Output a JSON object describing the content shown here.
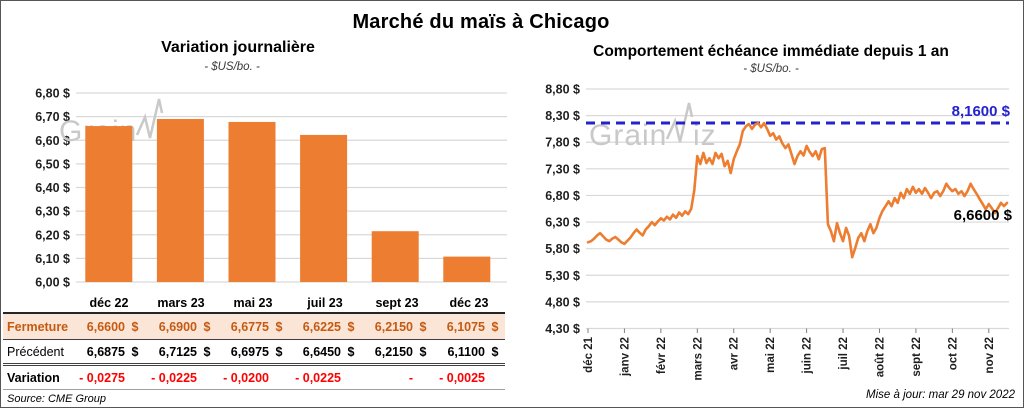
{
  "title": "Marché du maïs à Chicago",
  "colors": {
    "bar_orange": "#ED7D31",
    "line_orange": "#ED7D31",
    "ref_blue": "#2323CD",
    "grid": "#D9D9D9",
    "fermeture_bg": "#FBE5D6",
    "fermeture_text": "#C55A11",
    "variation_red": "#FF0000",
    "watermark_gray": "#c9c9c9"
  },
  "watermark": {
    "prefix": "Grain",
    "suffix": "iz"
  },
  "chart_data": [
    {
      "type": "bar",
      "title": "Variation journalière",
      "subtitle": "- $US/bo. -",
      "categories": [
        "déc 22",
        "mars 23",
        "mai 23",
        "juil 23",
        "sept 23",
        "déc 23"
      ],
      "values": [
        6.66,
        6.69,
        6.6775,
        6.6225,
        6.215,
        6.1075
      ],
      "ylim": [
        6.0,
        6.8
      ],
      "ytick_step": 0.1,
      "ytick_labels": [
        "6,00 $",
        "6,10 $",
        "6,20 $",
        "6,30 $",
        "6,40 $",
        "6,50 $",
        "6,60 $",
        "6,70 $",
        "6,80 $"
      ],
      "grid": true,
      "legend": "none"
    },
    {
      "type": "line",
      "title": "Comportement échéance immédiate depuis 1 an",
      "subtitle": "- $US/bo. -",
      "x_tick_labels": [
        "déc 21",
        "janv 22",
        "févr 22",
        "mars 22",
        "avr 22",
        "mai 22",
        "juin 22",
        "juil 22",
        "août 22",
        "sept 22",
        "oct 22",
        "nov 22"
      ],
      "points_per_month": 12,
      "values": [
        5.92,
        5.94,
        5.99,
        6.05,
        6.09,
        6.03,
        5.97,
        5.94,
        5.99,
        6.02,
        5.97,
        5.92,
        5.89,
        5.95,
        6.01,
        6.09,
        6.16,
        6.1,
        6.05,
        6.16,
        6.22,
        6.3,
        6.24,
        6.31,
        6.37,
        6.33,
        6.4,
        6.35,
        6.44,
        6.38,
        6.48,
        6.42,
        6.5,
        6.45,
        6.55,
        6.9,
        7.54,
        7.39,
        7.6,
        7.41,
        7.5,
        7.39,
        7.6,
        7.5,
        7.58,
        7.35,
        7.45,
        7.22,
        7.48,
        7.63,
        7.76,
        8.01,
        8.1,
        8.14,
        8.05,
        8.13,
        8.16,
        8.08,
        8.16,
        8.05,
        7.92,
        7.97,
        7.85,
        7.91,
        7.78,
        7.69,
        7.76,
        7.58,
        7.39,
        7.54,
        7.63,
        7.55,
        7.73,
        7.62,
        7.54,
        7.63,
        7.48,
        7.67,
        7.69,
        6.26,
        6.13,
        5.94,
        6.28,
        6.09,
        5.94,
        6.19,
        6.04,
        5.64,
        5.81,
        6.0,
        6.09,
        5.94,
        6.13,
        6.26,
        6.09,
        6.19,
        6.38,
        6.51,
        6.6,
        6.69,
        6.6,
        6.75,
        6.66,
        6.85,
        6.75,
        6.92,
        6.83,
        6.96,
        6.85,
        6.92,
        6.83,
        6.94,
        6.85,
        6.75,
        6.85,
        6.88,
        6.79,
        6.88,
        7.02,
        6.94,
        6.88,
        6.92,
        6.83,
        6.88,
        6.79,
        6.88,
        7.02,
        6.92,
        6.83,
        6.73,
        6.64,
        6.54,
        6.64,
        6.56,
        6.47,
        6.56,
        6.66,
        6.6,
        6.66
      ],
      "ylim": [
        4.3,
        8.8
      ],
      "ytick_step": 0.5,
      "ytick_labels": [
        "4,30 $",
        "4,80 $",
        "5,30 $",
        "5,80 $",
        "6,30 $",
        "6,80 $",
        "7,30 $",
        "7,80 $",
        "8,30 $",
        "8,80 $"
      ],
      "ref_line": {
        "value": 8.16,
        "label": "8,1600 $",
        "style": "dashed"
      },
      "end_label": {
        "value": 6.66,
        "label": "6,6600 $"
      },
      "grid": true,
      "legend": "none"
    }
  ],
  "table": {
    "columns": [
      "",
      "déc 22",
      "mars 23",
      "mai 23",
      "juil 23",
      "sept 23",
      "déc 23"
    ],
    "rows": [
      {
        "label": "Fermeture",
        "style": "ferm",
        "values": [
          "6,6600",
          "6,6900",
          "6,6775",
          "6,6225",
          "6,2150",
          "6,1075"
        ],
        "currency": "$"
      },
      {
        "label": "Précédent",
        "style": "prec",
        "values": [
          "6,6875",
          "6,7125",
          "6,6975",
          "6,6450",
          "6,2150",
          "6,1100"
        ],
        "currency": "$"
      },
      {
        "label": "Variation",
        "style": "var",
        "values": [
          "- 0,0275",
          "- 0,0225",
          "- 0,0200",
          "- 0,0225",
          "-",
          "- 0,0025"
        ],
        "currency": ""
      }
    ]
  },
  "footer": {
    "source": "Source: CME Group",
    "updated": "Mise à jour: mar 29 nov 2022"
  }
}
